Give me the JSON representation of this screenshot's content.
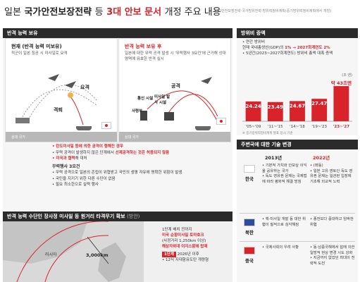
{
  "header": {
    "title_prefix": "일본",
    "title_main": "국가안전보장전략",
    "title_mid": "등",
    "title_accent": "3대 안보 문서",
    "title_suffix": "개정 주요 내용",
    "source": "국가안전보장전략·국가방위전략·방위력정비계획(중기방위력정비계획에서 개칭)"
  },
  "capability": {
    "section_title": "반격 능력 보유",
    "before": {
      "title": "현재 (반격 능력 미보유)",
      "desc": "적군이 일본 침공 시 미사일로 요격",
      "tag_intercept": "요격",
      "tag_defeat": "격퇴",
      "ground": "상대 국가"
    },
    "after": {
      "title": "반격 능력 보유 후",
      "desc": "일본에 대한 무력 공격 발생 시 '무력행사 3요건'에 근거해 상대 영역에 유효한 반격 실시",
      "tag_attack": "공격",
      "tag_targets": "통신 시설",
      "tag_hq": "사령부",
      "tag_missile": "미사일 발사 시설",
      "ground": "상대 국가"
    },
    "notes": {
      "line1": "• 탄도미사일 등에 의한 공격이 행해진 경우",
      "line2_a": "• 무력 공격이 발생하지 않은 단계에서",
      "line2_b": "선제공격하는 것은 허용되지 않음",
      "line3_a": "• 미국과 협력",
      "line3_b": "해 대처",
      "head": "무력행사 3요건",
      "req1": "• 무력 공격으로 일본의 존립이 위협받고 국민의 생명 자유에 명확한 위험이 발생",
      "req2": "• 국민을 지키기 위한 다른 수단이 없음",
      "req3": "• 필요 최소한으로 실력 행사"
    }
  },
  "budget": {
    "section_title": "방위비 증액",
    "info1": "• 연간 방위비",
    "info2_a": "현재 국내총생산(GDP)의",
    "info2_b": "1% → 2027회계연도 2%",
    "info3": "• 5년간(2023~2027회계연도) 방위비 총액 대폭 증액",
    "unit": "(조 엔)",
    "footnote": "※ 중기방위력정비계획 발표 당시 기준"
  },
  "chart_data": {
    "type": "bar",
    "categories": [
      "'05~'09",
      "'11~'15",
      "'14~'18",
      "'19~'23",
      "'23~'27"
    ],
    "values": [
      24.24,
      23.49,
      24.67,
      27.47,
      43
    ],
    "value_labels": [
      "24.24",
      "23.49",
      "24.67",
      "27.47",
      "약 43조엔"
    ],
    "colors": [
      "#d8232a",
      "#d8232a",
      "#d8232a",
      "#d8232a",
      "#d8232a"
    ],
    "ylim": [
      0,
      50
    ]
  },
  "tech": {
    "section_title": "주변국에 대한 기술 변경",
    "col1": "2013년",
    "col2": "2022년",
    "china": {
      "label": "중국",
      "old": "• 국제사회의 우려 사항",
      "new": "• 동·남중국해에서 힘에 의한 일방적 현상 변경 시도 강화\n• 지금까지 없었던 최대의 전략적 도전"
    },
    "korea": {
      "label": "한국",
      "old": "• 기본적 가치와 안보상 이익을 공유하는 국가\n• 독도 영유권 문제는 국제법에 따라 평화적 해결 방침",
      "new": "• (좌동)\n• 일본 고유 영토인 독도 영유권 문제는 일관된 입장에 기초해 외교적 노력"
    },
    "nk": {
      "label": "북한",
      "old": "• 핵·미사일 개발 등 대한 위협이 질적으로 심각해짐",
      "new": "• 종전보다 중대하고 임박한 위협"
    }
  },
  "strike": {
    "section_title": "반격 능력 수단인 장사정 미사일 등 원거리 타격무기 확보",
    "section_note": "(방안)",
    "map_russia": "러시아",
    "map_range": "3,000km",
    "text1": "1단계 배치 전까지",
    "text2": "미국 순항미사일 토마호크",
    "text3": "(사정거리 1,250km 이상)",
    "text4": "해상자위대 이지스함에 탑재",
    "phase1_label": "1단계",
    "phase1_year": "2026년 이후",
    "text5": "• 12식 지대함유도탄 개량형"
  }
}
